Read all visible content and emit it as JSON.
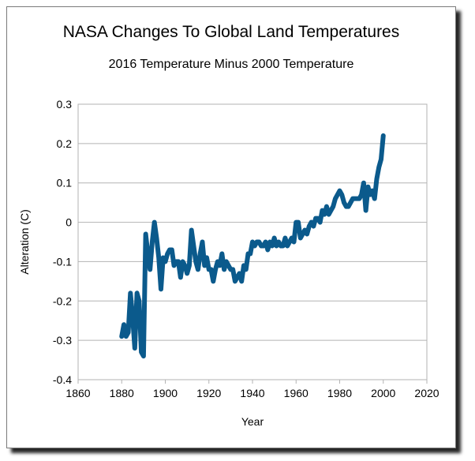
{
  "chart_data": {
    "type": "line",
    "title": "NASA Changes To Global Land Temperatures",
    "subtitle": "2016 Temperature Minus 2000 Temperature",
    "xlabel": "Year",
    "ylabel": "Alteration (C)",
    "xlim": [
      1860,
      2020
    ],
    "ylim": [
      -0.4,
      0.3
    ],
    "x_ticks": [
      1860,
      1880,
      1900,
      1920,
      1940,
      1960,
      1980,
      2000,
      2020
    ],
    "y_ticks": [
      -0.4,
      -0.3,
      -0.2,
      -0.1,
      0,
      0.1,
      0.2,
      0.3
    ],
    "x_tick_labels": [
      "1860",
      "1880",
      "1900",
      "1920",
      "1940",
      "1960",
      "1980",
      "2000",
      "2020"
    ],
    "y_tick_labels": [
      "-0.4",
      "-0.3",
      "-0.2",
      "-0.1",
      "0",
      "0.1",
      "0.2",
      "0.3"
    ],
    "grid": "horizontal",
    "legend": "none",
    "line_color": "#0b5a8c",
    "series": [
      {
        "x": [
          1880,
          1881,
          1882,
          1883,
          1884,
          1885,
          1886,
          1887,
          1888,
          1889,
          1890,
          1891,
          1892,
          1893,
          1894,
          1895,
          1896,
          1897,
          1898,
          1899,
          1900,
          1901,
          1902,
          1903,
          1904,
          1905,
          1906,
          1907,
          1908,
          1909,
          1910,
          1911,
          1912,
          1913,
          1914,
          1915,
          1916,
          1917,
          1918,
          1919,
          1920,
          1921,
          1922,
          1923,
          1924,
          1925,
          1926,
          1927,
          1928,
          1929,
          1930,
          1931,
          1932,
          1933,
          1934,
          1935,
          1936,
          1937,
          1938,
          1939,
          1940,
          1941,
          1942,
          1943,
          1944,
          1945,
          1946,
          1947,
          1948,
          1949,
          1950,
          1951,
          1952,
          1953,
          1954,
          1955,
          1956,
          1957,
          1958,
          1959,
          1960,
          1961,
          1962,
          1963,
          1964,
          1965,
          1966,
          1967,
          1968,
          1969,
          1970,
          1971,
          1972,
          1973,
          1974,
          1975,
          1976,
          1977,
          1978,
          1979,
          1980,
          1981,
          1982,
          1983,
          1984,
          1985,
          1986,
          1987,
          1988,
          1989,
          1990,
          1991,
          1992,
          1993,
          1994,
          1995,
          1996,
          1997,
          1998,
          1999,
          2000
        ],
        "y": [
          -0.29,
          -0.26,
          -0.29,
          -0.28,
          -0.18,
          -0.24,
          -0.32,
          -0.18,
          -0.2,
          -0.33,
          -0.34,
          -0.03,
          -0.08,
          -0.12,
          -0.05,
          0.0,
          -0.04,
          -0.09,
          -0.17,
          -0.09,
          -0.1,
          -0.08,
          -0.07,
          -0.07,
          -0.11,
          -0.1,
          -0.1,
          -0.14,
          -0.1,
          -0.11,
          -0.13,
          -0.11,
          -0.02,
          -0.06,
          -0.1,
          -0.12,
          -0.08,
          -0.05,
          -0.11,
          -0.09,
          -0.12,
          -0.12,
          -0.15,
          -0.12,
          -0.1,
          -0.11,
          -0.08,
          -0.12,
          -0.1,
          -0.11,
          -0.12,
          -0.12,
          -0.15,
          -0.14,
          -0.13,
          -0.15,
          -0.11,
          -0.12,
          -0.08,
          -0.08,
          -0.05,
          -0.06,
          -0.05,
          -0.05,
          -0.06,
          -0.06,
          -0.05,
          -0.07,
          -0.05,
          -0.06,
          -0.04,
          -0.06,
          -0.05,
          -0.06,
          -0.06,
          -0.04,
          -0.06,
          -0.05,
          -0.04,
          -0.05,
          0.0,
          0.0,
          -0.04,
          -0.03,
          -0.02,
          -0.03,
          -0.01,
          0.0,
          -0.01,
          0.01,
          0.01,
          0.0,
          0.03,
          0.02,
          0.04,
          0.02,
          0.03,
          0.04,
          0.06,
          0.07,
          0.08,
          0.07,
          0.05,
          0.04,
          0.04,
          0.05,
          0.06,
          0.06,
          0.06,
          0.06,
          0.07,
          0.1,
          0.03,
          0.09,
          0.07,
          0.08,
          0.06,
          0.11,
          0.14,
          0.16,
          0.22
        ]
      }
    ]
  }
}
